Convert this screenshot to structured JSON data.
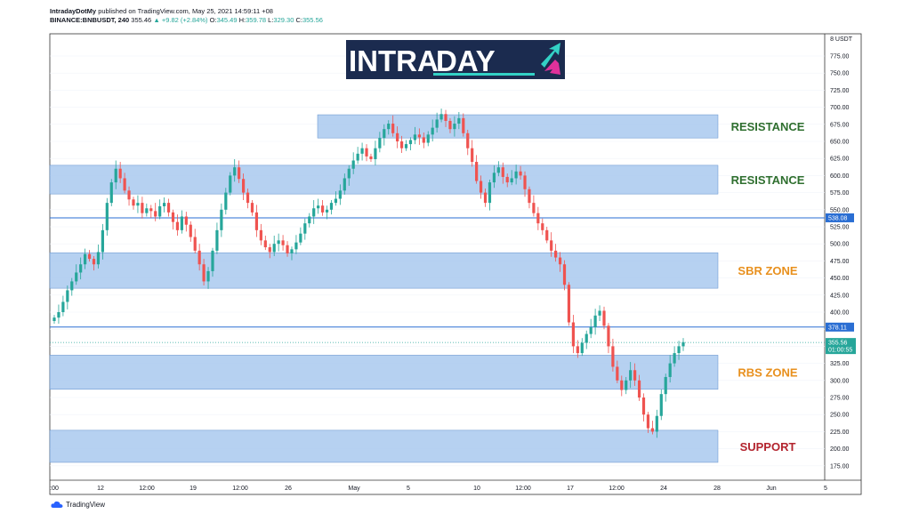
{
  "header": {
    "author": "IntradayDotMy",
    "published": "published on TradingView.com, May 25, 2021 14:59:11 +08",
    "symbol": "BINANCE:BNBUSDT, 240",
    "price": "355.46",
    "change": "▲ +9.82 (+2.84%)",
    "o_label": "O:",
    "o_value": "345.49",
    "h_label": "H:",
    "h_value": "359.78",
    "l_label": "L:",
    "l_value": "329.30",
    "c_label": "C:",
    "c_value": "355.56"
  },
  "logo": {
    "text_left": "INTRA",
    "text_right": "DAY"
  },
  "footer": {
    "brand": "TradingView"
  },
  "colors": {
    "zone_fill": "#a9c9ee",
    "zone_stroke": "#5f8fcc",
    "level_line": "#2a6ed3",
    "up": "#26a69a",
    "down": "#ef5350",
    "resistance": "#2f6f2f",
    "sbr": "#e8901e",
    "support": "#b3242e",
    "logo_bg": "#1b2b4f",
    "logo_accent": "#33d1c6",
    "logo_pink": "#e0319b"
  },
  "chart_data": {
    "type": "candlestick",
    "currency": "USDT",
    "price_axis": {
      "unit_label": "USDT",
      "ticks": [
        "775.00",
        "750.00",
        "725.00",
        "700.00",
        "675.00",
        "650.00",
        "625.00",
        "600.00",
        "575.00",
        "550.00",
        "525.00",
        "500.00",
        "475.00",
        "450.00",
        "425.00",
        "400.00",
        "375.00",
        "350.00",
        "325.00",
        "300.00",
        "275.00",
        "250.00",
        "225.00",
        "200.00",
        "175.00"
      ],
      "range": [
        160,
        790
      ]
    },
    "time_axis": {
      "labels": [
        ":00",
        "12",
        "12:00",
        "19",
        "12:00",
        "26",
        "May",
        "5",
        "10",
        "12:00",
        "17",
        "12:00",
        "24",
        "28",
        "Jun",
        "5"
      ]
    },
    "zones": [
      {
        "label": "RESISTANCE",
        "from": 655,
        "to": 689,
        "color_key": "resistance"
      },
      {
        "label": "RESISTANCE",
        "from": 573,
        "to": 615,
        "color_key": "resistance"
      },
      {
        "label": "SBR ZONE",
        "from": 435,
        "to": 487,
        "color_key": "sbr"
      },
      {
        "label": "RBS ZONE",
        "from": 287,
        "to": 337,
        "color_key": "sbr"
      },
      {
        "label": "SUPPORT",
        "from": 180,
        "to": 227,
        "color_key": "support"
      }
    ],
    "levels": [
      {
        "label": "538.08",
        "value": 538.08
      },
      {
        "label": "378.11",
        "value": 378.11
      }
    ],
    "current": {
      "label": "355.56",
      "countdown": "01:00:55",
      "value": 355.56
    },
    "closes": [
      392,
      400,
      415,
      432,
      445,
      458,
      470,
      485,
      478,
      470,
      488,
      520,
      560,
      590,
      610,
      596,
      578,
      565,
      556,
      560,
      545,
      552,
      548,
      540,
      555,
      560,
      546,
      532,
      520,
      540,
      528,
      510,
      490,
      470,
      445,
      460,
      490,
      520,
      550,
      575,
      600,
      612,
      595,
      575,
      560,
      546,
      520,
      505,
      495,
      488,
      500,
      505,
      498,
      486,
      492,
      502,
      515,
      530,
      540,
      552,
      556,
      546,
      550,
      560,
      566,
      578,
      596,
      610,
      622,
      632,
      640,
      628,
      624,
      640,
      655,
      668,
      676,
      662,
      650,
      640,
      646,
      652,
      660,
      656,
      648,
      660,
      670,
      682,
      690,
      680,
      668,
      676,
      684,
      662,
      640,
      620,
      592,
      575,
      560,
      590,
      604,
      612,
      598,
      590,
      596,
      606,
      600,
      580,
      560,
      545,
      530,
      520,
      505,
      490,
      480,
      470,
      440,
      385,
      350,
      340,
      355,
      368,
      378,
      395,
      402,
      380,
      350,
      320,
      300,
      286,
      300,
      315,
      300,
      275,
      250,
      230,
      225,
      248,
      280,
      305,
      325,
      340,
      350,
      356
    ],
    "volatility_scale": 1
  }
}
